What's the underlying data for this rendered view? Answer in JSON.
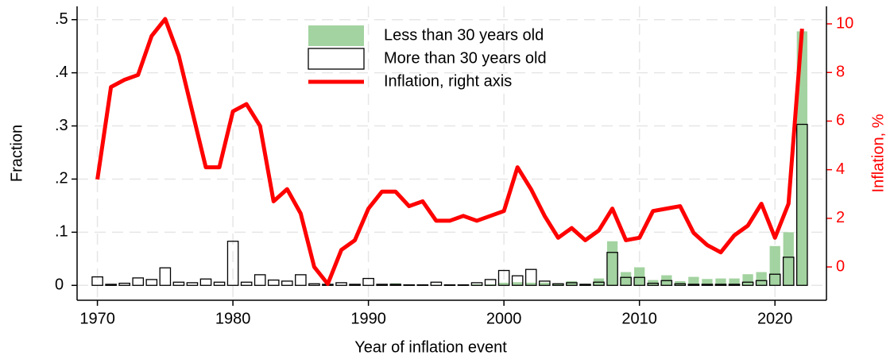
{
  "chart_data": {
    "type": "bar",
    "x_label": "Year of inflation event",
    "y_label": "Fraction",
    "y2_label": "Inflation, %",
    "x": [
      1970,
      1971,
      1972,
      1973,
      1974,
      1975,
      1976,
      1977,
      1978,
      1979,
      1980,
      1981,
      1982,
      1983,
      1984,
      1985,
      1986,
      1987,
      1988,
      1989,
      1990,
      1991,
      1992,
      1993,
      1994,
      1995,
      1996,
      1997,
      1998,
      1999,
      2000,
      2001,
      2002,
      2003,
      2004,
      2005,
      2006,
      2007,
      2008,
      2009,
      2010,
      2011,
      2012,
      2013,
      2014,
      2015,
      2016,
      2017,
      2018,
      2019,
      2020,
      2021,
      2022
    ],
    "series": [
      {
        "name": "Less than 30 years old",
        "type": "bar",
        "style": "filled",
        "color": "#a3d3a0",
        "values": [
          0,
          0,
          0,
          0,
          0,
          0,
          0,
          0,
          0,
          0,
          0,
          0,
          0,
          0,
          0,
          0,
          0,
          0,
          0,
          0,
          0,
          0,
          0.004,
          0.001,
          0.001,
          0.001,
          0.001,
          0.001,
          0.002,
          0.002,
          0.005,
          0.006,
          0.005,
          0.005,
          0.004,
          0.008,
          0.003,
          0.013,
          0.083,
          0.025,
          0.034,
          0.01,
          0.019,
          0.008,
          0.016,
          0.012,
          0.013,
          0.013,
          0.021,
          0.025,
          0.074,
          0.1,
          0.478
        ]
      },
      {
        "name": "More than 30 years old",
        "type": "bar",
        "style": "outline",
        "color": "#000000",
        "values": [
          0.016,
          0.002,
          0.004,
          0.014,
          0.011,
          0.033,
          0.006,
          0.005,
          0.012,
          0.006,
          0.083,
          0.006,
          0.02,
          0.01,
          0.008,
          0.02,
          0.003,
          0.002,
          0.005,
          0.002,
          0.013,
          0.002,
          0.002,
          0.001,
          0.001,
          0.006,
          0.001,
          0.001,
          0.005,
          0.011,
          0.028,
          0.018,
          0.03,
          0.008,
          0.003,
          0.005,
          0.002,
          0.006,
          0.062,
          0.015,
          0.015,
          0.004,
          0.009,
          0.003,
          0.002,
          0.002,
          0.002,
          0.002,
          0.006,
          0.009,
          0.021,
          0.053,
          0.303
        ]
      },
      {
        "name": "Inflation, right axis",
        "type": "line",
        "axis": "y2",
        "color": "#ff0000",
        "values": [
          3.6,
          7.4,
          7.7,
          7.9,
          9.5,
          10.2,
          8.7,
          6.4,
          4.1,
          4.1,
          6.4,
          6.7,
          5.8,
          2.7,
          3.2,
          2.2,
          0.0,
          -0.7,
          0.7,
          1.1,
          2.4,
          3.1,
          3.1,
          2.5,
          2.7,
          1.9,
          1.9,
          2.1,
          1.9,
          2.1,
          2.3,
          4.1,
          3.2,
          2.1,
          1.2,
          1.6,
          1.1,
          1.5,
          2.4,
          1.1,
          1.2,
          2.3,
          2.4,
          2.5,
          1.4,
          0.9,
          0.6,
          1.3,
          1.7,
          2.6,
          1.2,
          2.6,
          9.8
        ]
      }
    ],
    "xlim": [
      1968.5,
      2023.8
    ],
    "xticks": [
      1970,
      1980,
      1990,
      2000,
      2010,
      2020
    ],
    "ylim": [
      -0.028,
      0.525
    ],
    "yticks": [
      0,
      {
        "value": 0.1,
        "label": ".1"
      },
      {
        "value": 0.2,
        "label": ".2"
      },
      {
        "value": 0.3,
        "label": ".3"
      },
      {
        "value": 0.4,
        "label": ".4"
      },
      {
        "value": 0.5,
        "label": ".5"
      }
    ],
    "y2lim": [
      -1.37,
      10.72
    ],
    "y2ticks": [
      0,
      2,
      4,
      6,
      8,
      10
    ],
    "y2_color": "#ff0000",
    "grid": true,
    "legend": "top"
  }
}
